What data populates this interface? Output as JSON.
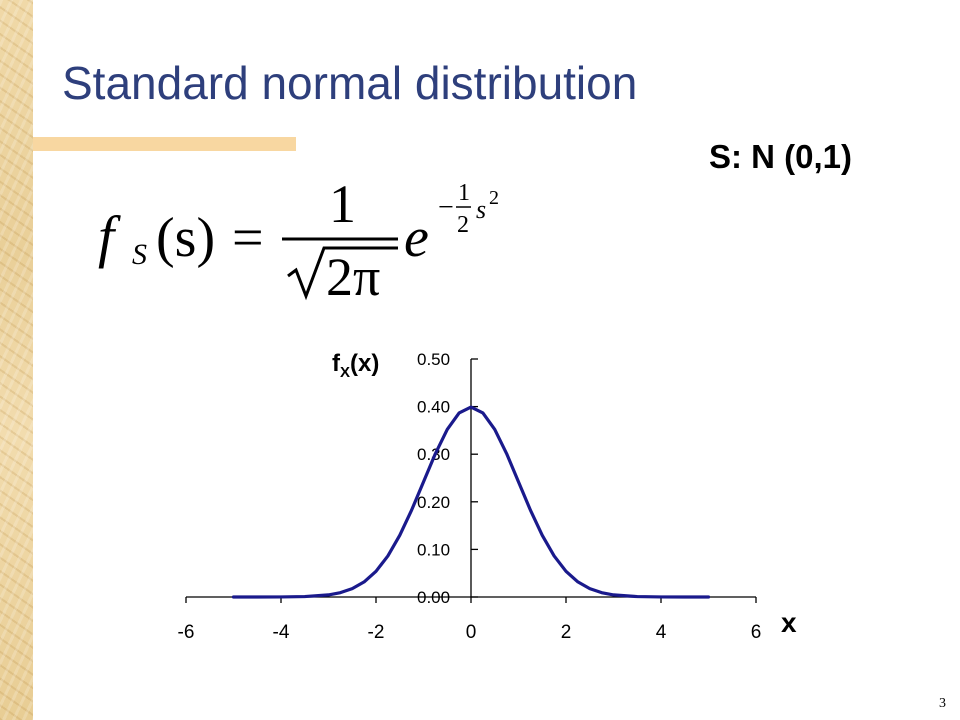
{
  "slide": {
    "title": "Standard normal distribution",
    "distribution_label": "S: N (0,1)",
    "page_number": "3"
  },
  "formula": {
    "lhs_f": "f",
    "lhs_sub": "S",
    "lhs_arg": "(s)",
    "equals": "=",
    "numerator": "1",
    "denominator": "2π",
    "base": "e",
    "exp_sign": "−",
    "exp_num": "1",
    "exp_den": "2",
    "exp_var": "s",
    "exp_power": "2"
  },
  "chart_data": {
    "type": "line",
    "ylabel_main": "f",
    "ylabel_sub": "X",
    "ylabel_tail": "(x)",
    "xlabel": "x",
    "xlim": [
      -6,
      6
    ],
    "ylim": [
      0,
      0.5
    ],
    "x_ticks": [
      -6,
      -4,
      -2,
      0,
      2,
      4,
      6
    ],
    "x_tick_labels": [
      "-6",
      "-4",
      "-2",
      "0",
      "2",
      "4",
      "6"
    ],
    "y_ticks": [
      0,
      0.1,
      0.2,
      0.3,
      0.4,
      0.5
    ],
    "y_tick_labels": [
      "0.00",
      "0.10",
      "0.20",
      "0.30",
      "0.40",
      "0.50"
    ],
    "grid": false,
    "line_color": "#1a1a8c",
    "series": [
      {
        "x": [
          -5,
          -4.5,
          -4,
          -3.5,
          -3,
          -2.75,
          -2.5,
          -2.25,
          -2,
          -1.75,
          -1.5,
          -1.25,
          -1,
          -0.75,
          -0.5,
          -0.25,
          0,
          0.25,
          0.5,
          0.75,
          1,
          1.25,
          1.5,
          1.75,
          2,
          2.25,
          2.5,
          2.75,
          3,
          3.5,
          4,
          4.5,
          5
        ],
        "y": [
          1.5e-06,
          1.6e-05,
          0.000134,
          0.000873,
          0.004432,
          0.009094,
          0.017528,
          0.03174,
          0.053991,
          0.086277,
          0.129518,
          0.182649,
          0.241971,
          0.301137,
          0.352065,
          0.386668,
          0.398942,
          0.386668,
          0.352065,
          0.301137,
          0.241971,
          0.182649,
          0.129518,
          0.086277,
          0.053991,
          0.03174,
          0.017528,
          0.009094,
          0.004432,
          0.000873,
          0.000134,
          1.6e-05,
          1.5e-06
        ]
      }
    ]
  }
}
